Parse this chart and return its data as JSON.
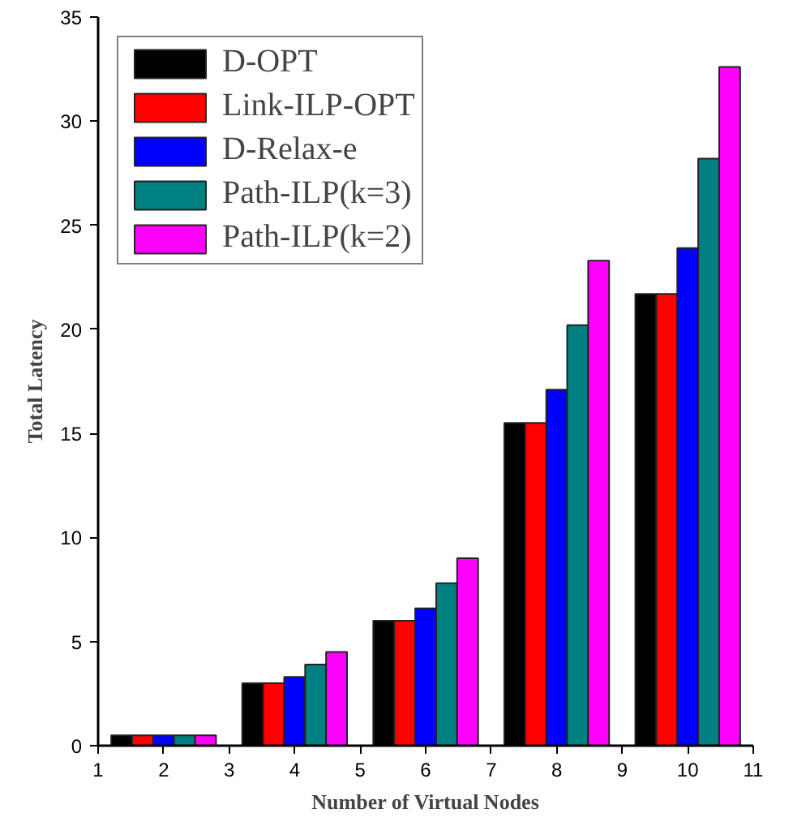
{
  "chart_data": {
    "type": "bar",
    "xlabel": "Number of Virtual Nodes",
    "ylabel": "Total Latency",
    "x": [
      2,
      4,
      6,
      8,
      10
    ],
    "series": [
      {
        "name": "D-OPT",
        "color": "#000000",
        "values": [
          0.5,
          3.0,
          6.0,
          15.5,
          21.7
        ]
      },
      {
        "name": "Link-ILP-OPT",
        "color": "#ff0000",
        "values": [
          0.5,
          3.0,
          6.0,
          15.5,
          21.7
        ]
      },
      {
        "name": "D-Relax-e",
        "color": "#0000ff",
        "values": [
          0.5,
          3.3,
          6.6,
          17.1,
          23.9
        ]
      },
      {
        "name": "Path-ILP(k=3)",
        "color": "#008080",
        "values": [
          0.5,
          3.9,
          7.8,
          20.2,
          28.2
        ]
      },
      {
        "name": "Path-ILP(k=2)",
        "color": "#ff00ff",
        "values": [
          0.5,
          4.5,
          9.0,
          23.3,
          32.6
        ]
      }
    ],
    "xlim": [
      1,
      11
    ],
    "xticks": [
      1,
      2,
      3,
      4,
      5,
      6,
      7,
      8,
      9,
      10,
      11
    ],
    "ylim": [
      0,
      35
    ],
    "yticks": [
      0,
      5,
      10,
      15,
      20,
      25,
      30,
      35
    ],
    "grid": false,
    "legend": "top left"
  }
}
